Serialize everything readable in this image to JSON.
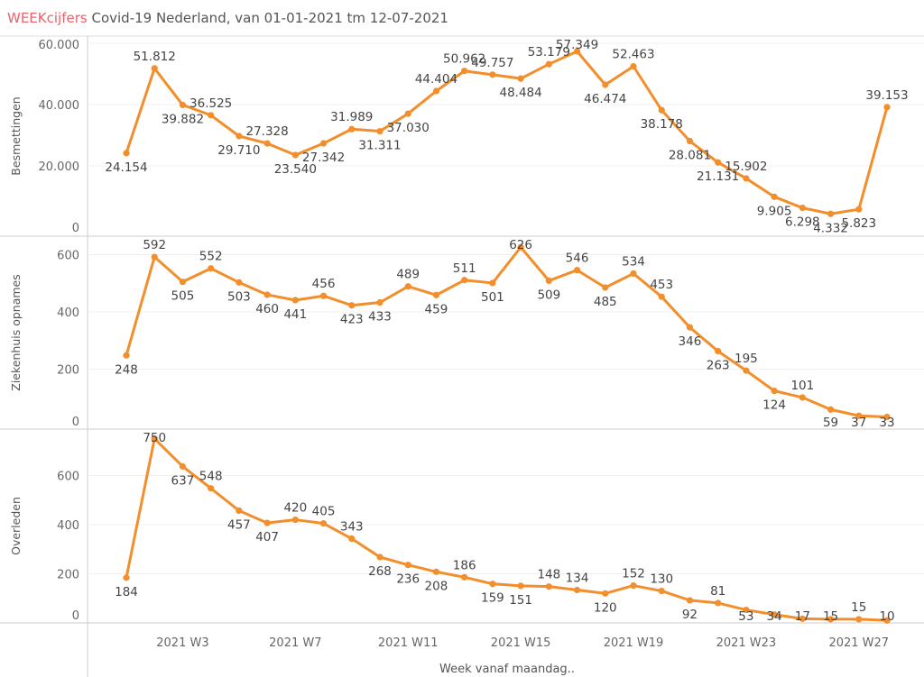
{
  "title": {
    "accent": "WEEKcijfers",
    "rest": " Covid-19 Nederland, van 01-01-2021 tm 12-07-2021"
  },
  "colors": {
    "line": "#f28e2b",
    "accent": "#e8636a"
  },
  "chart_data": {
    "type": "line",
    "x": [
      "2021 W1",
      "2021 W2",
      "2021 W3",
      "2021 W4",
      "2021 W5",
      "2021 W6",
      "2021 W7",
      "2021 W8",
      "2021 W9",
      "2021 W10",
      "2021 W11",
      "2021 W12",
      "2021 W13",
      "2021 W14",
      "2021 W15",
      "2021 W16",
      "2021 W17",
      "2021 W18",
      "2021 W19",
      "2021 W20",
      "2021 W21",
      "2021 W22",
      "2021 W23",
      "2021 W24",
      "2021 W25",
      "2021 W26",
      "2021 W27",
      "2021 W28"
    ],
    "x_tick_labels": [
      "2021 W3",
      "2021 W7",
      "2021 W11",
      "2021 W15",
      "2021 W19",
      "2021 W23",
      "2021 W27"
    ],
    "xlabel": "Week vanaf maandag..",
    "panels": [
      {
        "name": "Besmettingen",
        "ylabel": "Besmettingen",
        "ylim": [
          0,
          60000
        ],
        "yticks": [
          0,
          20000,
          40000,
          60000
        ],
        "values": [
          24154,
          51812,
          39882,
          36525,
          29710,
          27328,
          23540,
          27342,
          31989,
          31311,
          37030,
          44404,
          50962,
          49757,
          48484,
          53179,
          57349,
          46474,
          52463,
          38178,
          28081,
          21131,
          15902,
          9905,
          6298,
          4332,
          5823,
          39153
        ]
      },
      {
        "name": "Ziekenhuis opnames",
        "ylabel": "Ziekenhuis opnames",
        "ylim": [
          0,
          600
        ],
        "yticks": [
          0,
          200,
          400,
          600
        ],
        "values": [
          248,
          592,
          505,
          552,
          503,
          460,
          441,
          456,
          423,
          433,
          489,
          459,
          511,
          501,
          626,
          509,
          546,
          485,
          534,
          453,
          346,
          263,
          195,
          124,
          101,
          59,
          37,
          33
        ]
      },
      {
        "name": "Overleden",
        "ylabel": "Overleden",
        "ylim": [
          0,
          750
        ],
        "yticks": [
          0,
          200,
          400,
          600
        ],
        "values": [
          184,
          750,
          637,
          548,
          457,
          407,
          420,
          405,
          343,
          268,
          236,
          208,
          186,
          159,
          151,
          148,
          134,
          120,
          152,
          130,
          92,
          81,
          53,
          34,
          17,
          15,
          15,
          10
        ]
      }
    ]
  }
}
